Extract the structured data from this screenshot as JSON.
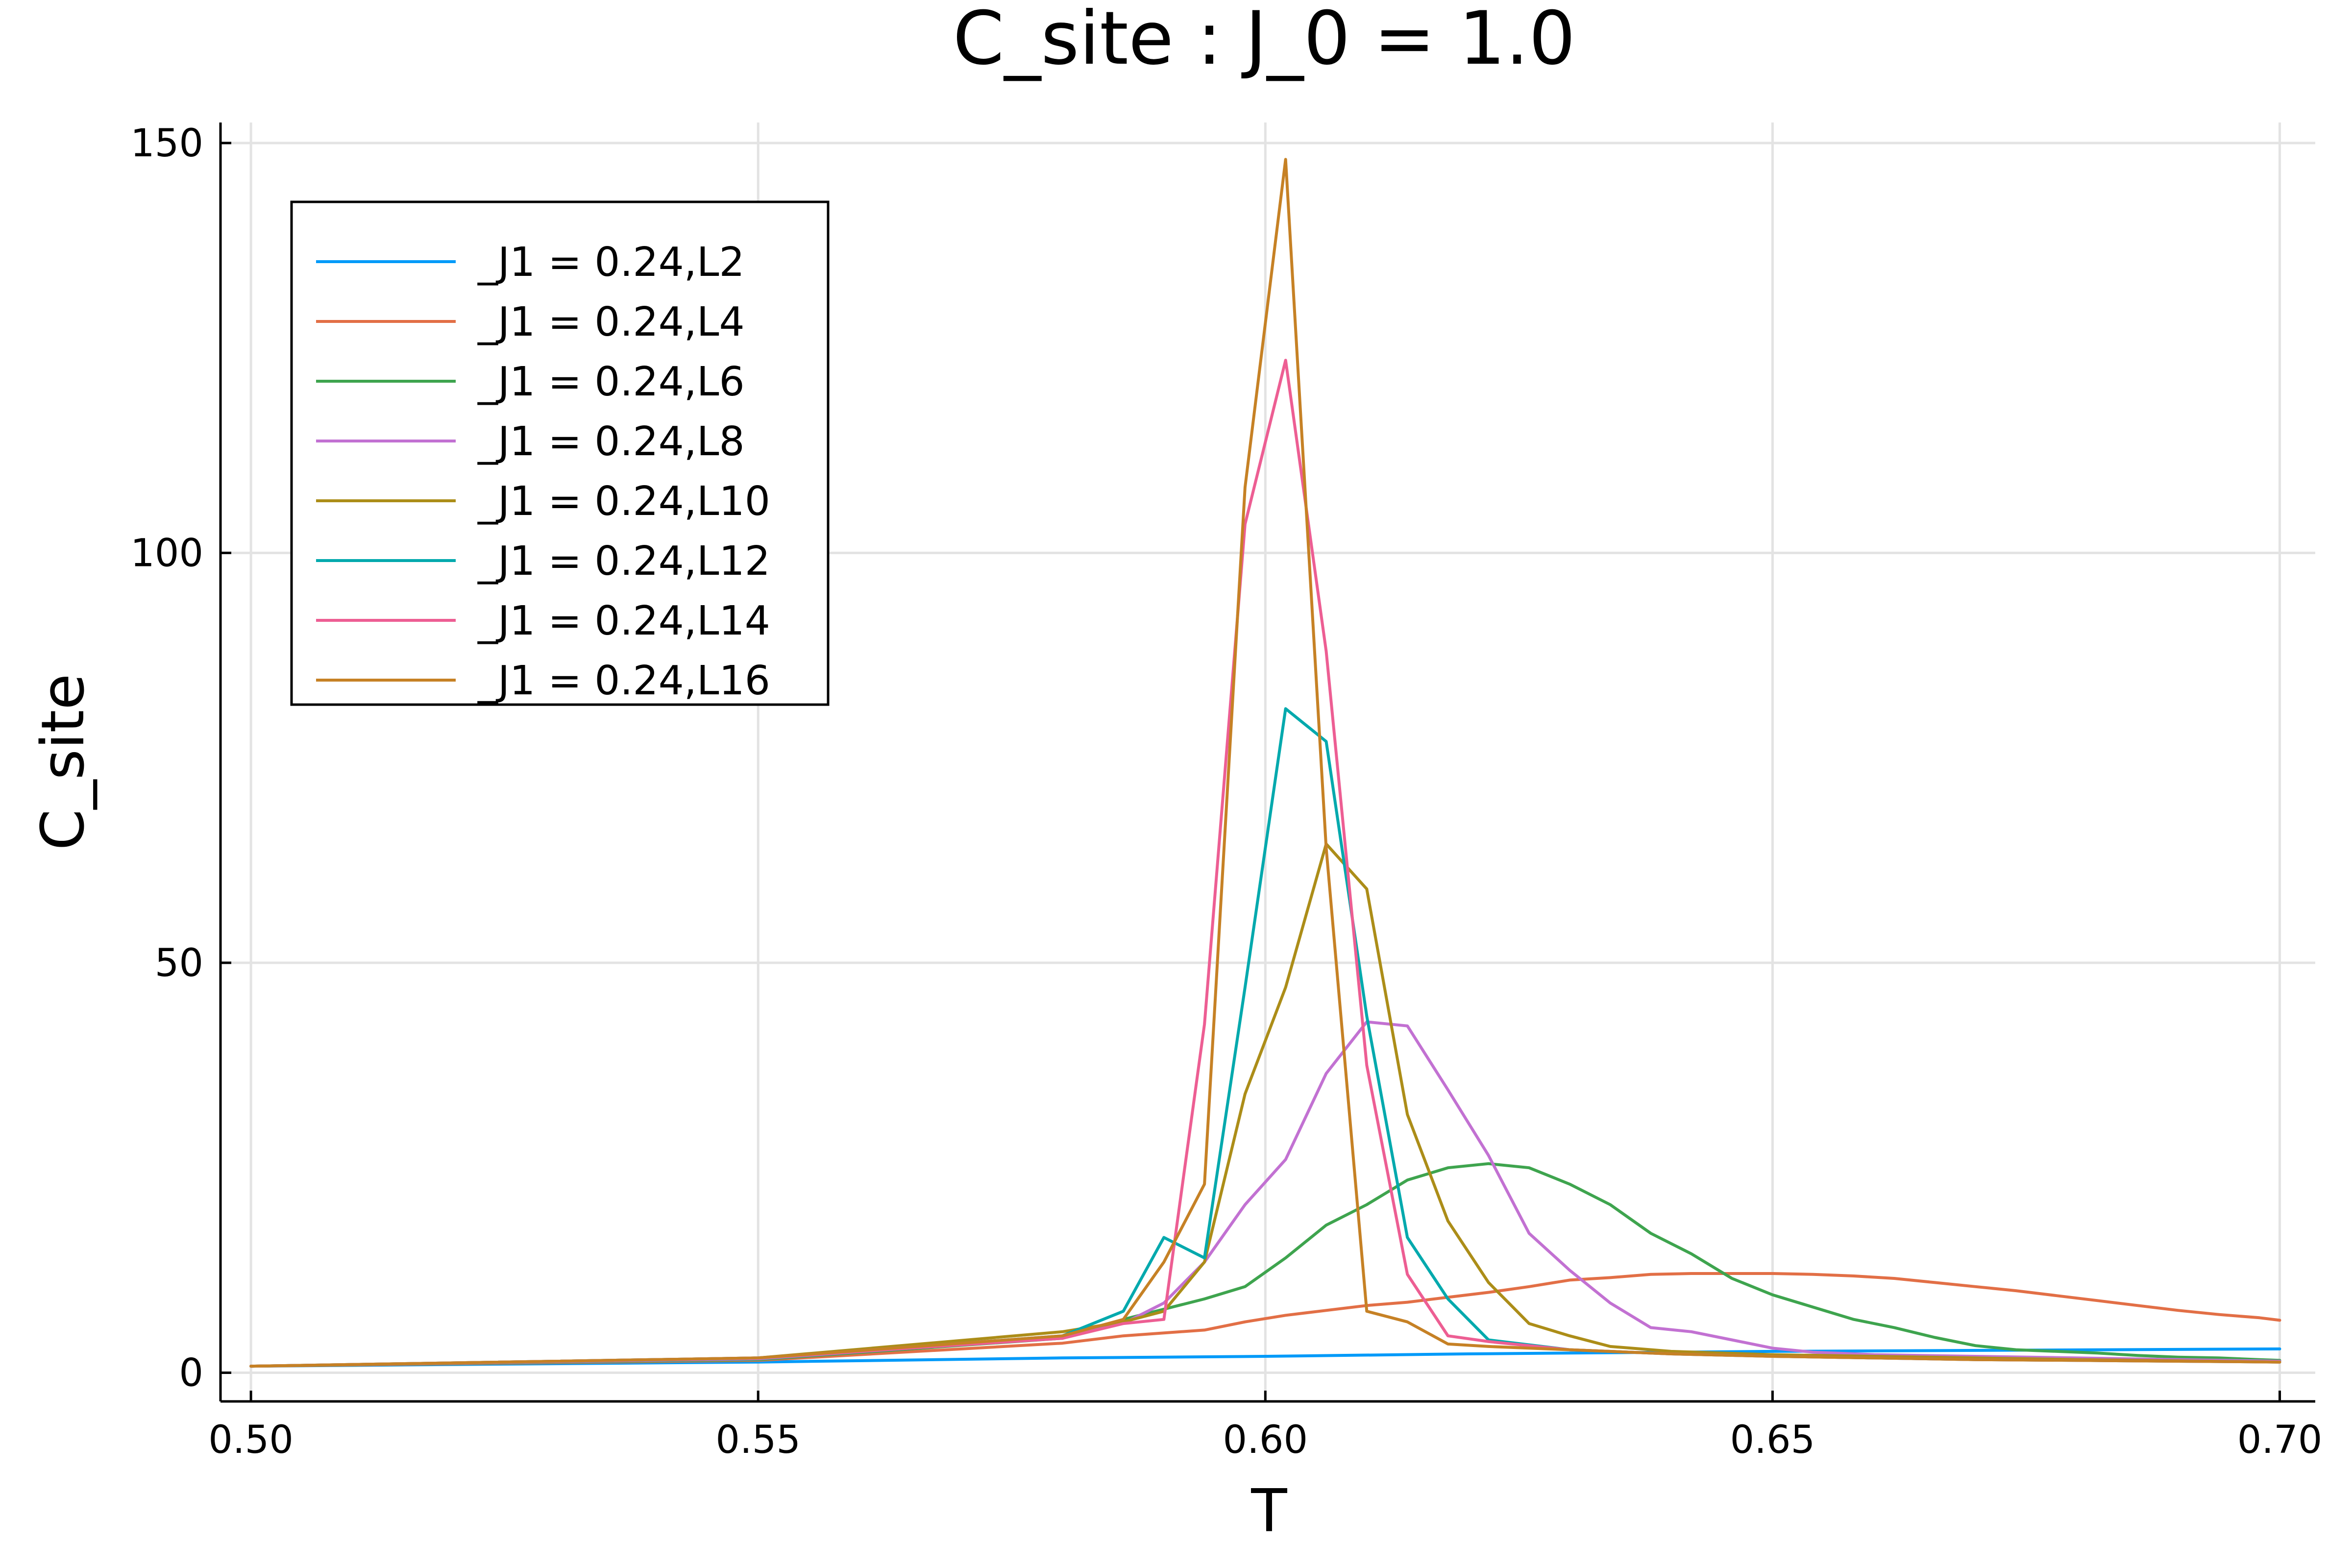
{
  "chart_data": {
    "type": "line",
    "title": "C_site : J_0 = 1.0",
    "xlabel": "T",
    "ylabel": "C_site",
    "xlim": [
      0.497,
      0.7035
    ],
    "ylim": [
      -3.5,
      152.5
    ],
    "xticks": [
      0.5,
      0.55,
      0.6,
      0.65,
      0.7
    ],
    "xtick_labels": [
      "0.50",
      "0.55",
      "0.60",
      "0.65",
      "0.70"
    ],
    "yticks": [
      0,
      50,
      100,
      150
    ],
    "ytick_labels": [
      "0",
      "50",
      "100",
      "150"
    ],
    "grid": true,
    "legend_position": "top-left",
    "series": [
      {
        "name": "_J1 = 0.24,L2",
        "color": "#009AF9",
        "x": [
          0.5,
          0.55,
          0.58,
          0.6,
          0.62,
          0.64,
          0.65,
          0.7
        ],
        "y": [
          0.8,
          1.3,
          1.8,
          2.0,
          2.3,
          2.5,
          2.6,
          2.9
        ]
      },
      {
        "name": "_J1 = 0.24,L4",
        "color": "#E26F46",
        "x": [
          0.5,
          0.55,
          0.58,
          0.586,
          0.594,
          0.598,
          0.602,
          0.606,
          0.61,
          0.614,
          0.618,
          0.622,
          0.626,
          0.63,
          0.634,
          0.638,
          0.642,
          0.646,
          0.65,
          0.654,
          0.658,
          0.662,
          0.666,
          0.67,
          0.674,
          0.678,
          0.682,
          0.686,
          0.69,
          0.694,
          0.698,
          0.7
        ],
        "y": [
          0.8,
          1.5,
          3.6,
          4.5,
          5.2,
          6.2,
          7.0,
          7.6,
          8.2,
          8.6,
          9.2,
          9.8,
          10.5,
          11.3,
          11.6,
          12.0,
          12.1,
          12.1,
          12.1,
          12.0,
          11.8,
          11.5,
          11.0,
          10.5,
          10.0,
          9.4,
          8.8,
          8.2,
          7.6,
          7.1,
          6.7,
          6.4
        ]
      },
      {
        "name": "_J1 = 0.24,L6",
        "color": "#3EA44E",
        "x": [
          0.5,
          0.55,
          0.58,
          0.586,
          0.594,
          0.598,
          0.602,
          0.606,
          0.61,
          0.614,
          0.618,
          0.622,
          0.626,
          0.63,
          0.634,
          0.638,
          0.642,
          0.646,
          0.65,
          0.654,
          0.658,
          0.662,
          0.666,
          0.67,
          0.674,
          0.678,
          0.682,
          0.686,
          0.69,
          0.694,
          0.698,
          0.7
        ],
        "y": [
          0.8,
          1.6,
          4.2,
          6.5,
          9.0,
          10.5,
          14.0,
          18.0,
          20.5,
          23.5,
          25.0,
          25.5,
          25.0,
          23.0,
          20.5,
          17.0,
          14.5,
          11.5,
          9.5,
          8.0,
          6.5,
          5.5,
          4.3,
          3.3,
          2.8,
          2.6,
          2.4,
          2.1,
          1.9,
          1.8,
          1.6,
          1.5
        ]
      },
      {
        "name": "_J1 = 0.24,L8",
        "color": "#C271D2",
        "x": [
          0.5,
          0.55,
          0.58,
          0.586,
          0.59,
          0.594,
          0.598,
          0.602,
          0.606,
          0.61,
          0.614,
          0.618,
          0.622,
          0.626,
          0.63,
          0.634,
          0.638,
          0.642,
          0.646,
          0.65,
          0.654,
          0.66,
          0.67,
          0.68,
          0.69,
          0.7
        ],
        "y": [
          0.8,
          1.7,
          4.3,
          6.0,
          8.5,
          13.5,
          20.5,
          26.0,
          36.5,
          42.8,
          42.3,
          34.5,
          26.5,
          17.0,
          12.5,
          8.5,
          5.5,
          5.0,
          4.0,
          3.0,
          2.5,
          2.2,
          2.0,
          1.8,
          1.6,
          1.4
        ]
      },
      {
        "name": "_J1 = 0.24,L10",
        "color": "#AC8D18",
        "x": [
          0.5,
          0.55,
          0.58,
          0.586,
          0.59,
          0.594,
          0.598,
          0.602,
          0.606,
          0.61,
          0.614,
          0.618,
          0.622,
          0.626,
          0.63,
          0.634,
          0.64,
          0.65,
          0.66,
          0.67,
          0.68,
          0.7
        ],
        "y": [
          0.8,
          1.8,
          5.0,
          6.2,
          7.5,
          13.5,
          34.0,
          47.0,
          64.5,
          59.0,
          31.5,
          18.5,
          11.0,
          6.0,
          4.5,
          3.2,
          2.6,
          2.2,
          2.0,
          1.8,
          1.6,
          1.3
        ]
      },
      {
        "name": "_J1 = 0.24,L12",
        "color": "#00A9AD",
        "x": [
          0.5,
          0.55,
          0.58,
          0.586,
          0.59,
          0.594,
          0.598,
          0.602,
          0.606,
          0.61,
          0.614,
          0.618,
          0.622,
          0.63,
          0.64,
          0.65,
          0.66,
          0.67,
          0.68,
          0.69,
          0.7
        ],
        "y": [
          0.8,
          1.8,
          4.5,
          7.5,
          16.5,
          14.0,
          47.0,
          81.0,
          77.0,
          43.5,
          16.5,
          9.0,
          4.0,
          2.8,
          2.3,
          2.0,
          1.8,
          1.6,
          1.5,
          1.4,
          1.3
        ]
      },
      {
        "name": "_J1 = 0.24,L14",
        "color": "#ED5E93",
        "x": [
          0.5,
          0.55,
          0.58,
          0.586,
          0.59,
          0.594,
          0.598,
          0.602,
          0.606,
          0.61,
          0.614,
          0.618,
          0.622,
          0.63,
          0.64,
          0.65,
          0.66,
          0.67,
          0.68,
          0.69,
          0.7
        ],
        "y": [
          0.8,
          1.8,
          4.2,
          6.0,
          6.5,
          42.5,
          103.5,
          123.5,
          88.0,
          37.5,
          12.0,
          4.5,
          3.8,
          2.8,
          2.3,
          2.0,
          1.8,
          1.6,
          1.5,
          1.4,
          1.3
        ]
      },
      {
        "name": "_J1 = 0.24,L16",
        "color": "#C68125",
        "x": [
          0.5,
          0.55,
          0.58,
          0.586,
          0.59,
          0.594,
          0.598,
          0.602,
          0.606,
          0.61,
          0.614,
          0.618,
          0.622,
          0.63,
          0.64,
          0.65,
          0.66,
          0.67,
          0.68,
          0.69,
          0.7
        ],
        "y": [
          0.8,
          1.8,
          4.5,
          6.5,
          13.5,
          23.0,
          108.0,
          148.0,
          64.0,
          7.5,
          6.2,
          3.5,
          3.2,
          2.8,
          2.3,
          2.0,
          1.8,
          1.6,
          1.5,
          1.4,
          1.3
        ]
      }
    ]
  }
}
